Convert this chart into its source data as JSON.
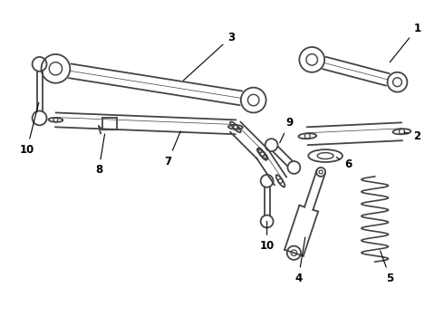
{
  "bg_color": "#ffffff",
  "line_color": "#444444",
  "lw": 1.3,
  "fig_width": 4.9,
  "fig_height": 3.6,
  "dpi": 100
}
